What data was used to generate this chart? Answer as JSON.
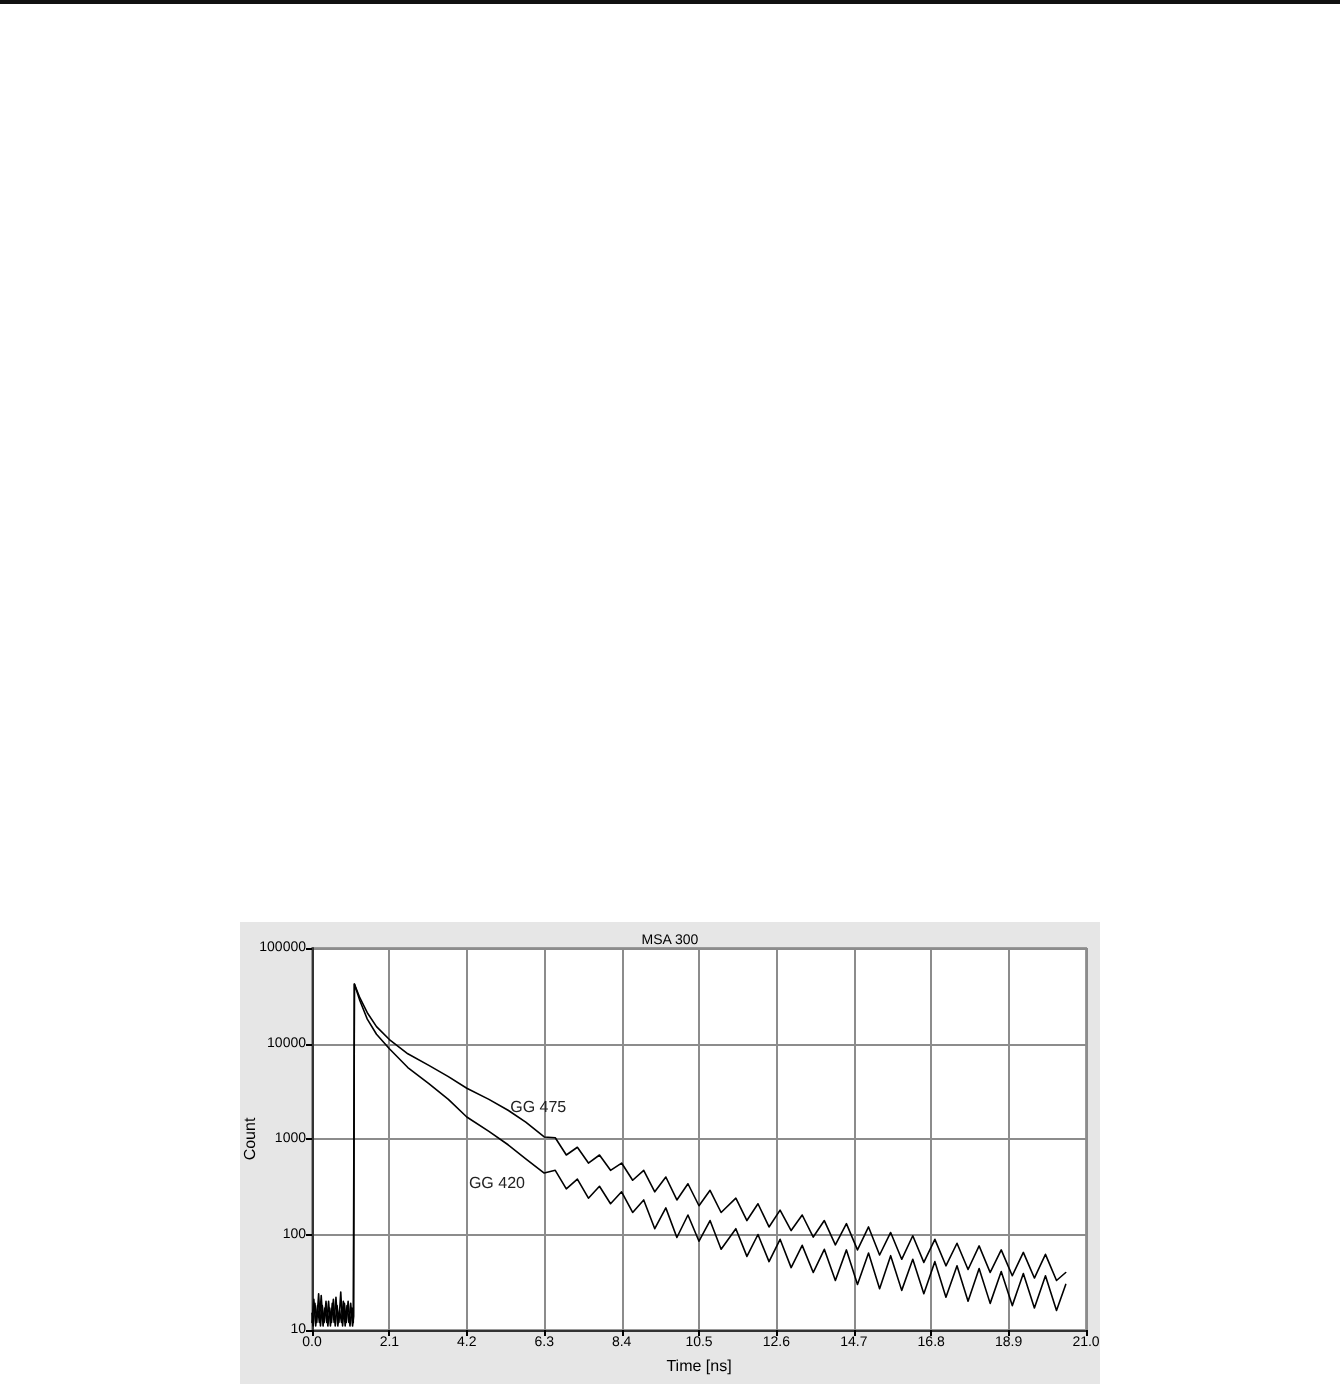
{
  "chart_data": {
    "type": "line",
    "title": "MSA 300",
    "xlabel": "Time [ns]",
    "ylabel": "Count",
    "xlim": [
      0,
      21
    ],
    "xticks": [
      {
        "value": 0,
        "label": "0.0"
      },
      2.1,
      4.2,
      6.3,
      8.4,
      10.5,
      12.6,
      14.7,
      16.8,
      18.9,
      {
        "value": 21,
        "label": "21.0"
      }
    ],
    "ylim": [
      10,
      100000
    ],
    "yticks": [
      10,
      100,
      1000,
      10000,
      100000
    ],
    "log": "y",
    "grid": true,
    "marker": "none",
    "line_style": "solid",
    "series": [
      {
        "name": "GG 475",
        "color": "#000000",
        "x": [
          0,
          0.05,
          0.1,
          0.15,
          0.2,
          0.25,
          0.3,
          0.35,
          0.4,
          0.45,
          0.5,
          0.55,
          0.6,
          0.65,
          0.7,
          0.75,
          0.8,
          0.85,
          0.9,
          0.95,
          1.0,
          1.05,
          1.1,
          1.13,
          1.15,
          1.3,
          1.5,
          1.75,
          2.1,
          2.6,
          3.17,
          3.7,
          4.2,
          4.8,
          5.32,
          5.8,
          6.3,
          6.6,
          6.9,
          7.2,
          7.5,
          7.8,
          8.1,
          8.4,
          8.7,
          9.0,
          9.3,
          9.6,
          9.9,
          10.2,
          10.5,
          10.8,
          11.1,
          11.5,
          11.8,
          12.1,
          12.4,
          12.7,
          13.0,
          13.3,
          13.6,
          13.9,
          14.2,
          14.5,
          14.8,
          15.1,
          15.4,
          15.7,
          16.0,
          16.3,
          16.6,
          16.9,
          17.2,
          17.5,
          17.8,
          18.1,
          18.4,
          18.7,
          19.0,
          19.3,
          19.6,
          19.9,
          20.2,
          20.45
        ],
        "values": [
          12,
          21,
          11,
          18,
          12,
          23,
          11,
          17,
          12,
          20,
          11,
          19,
          12,
          22,
          11,
          16,
          12,
          20,
          11,
          18,
          12,
          19,
          11,
          14,
          42000,
          30000,
          21000,
          15000,
          11000,
          7800,
          5900,
          4500,
          3400,
          2600,
          2000,
          1500,
          1050,
          1030,
          680,
          820,
          560,
          680,
          470,
          560,
          370,
          470,
          280,
          400,
          230,
          340,
          200,
          290,
          170,
          240,
          140,
          210,
          120,
          180,
          110,
          160,
          94,
          140,
          78,
          130,
          69,
          120,
          61,
          105,
          55,
          97,
          51,
          89,
          47,
          81,
          43,
          76,
          40,
          69,
          37,
          65,
          35,
          62,
          33,
          40
        ]
      },
      {
        "name": "GG 420",
        "color": "#000000",
        "x": [
          0,
          0.03,
          0.08,
          0.13,
          0.18,
          0.23,
          0.28,
          0.33,
          0.38,
          0.43,
          0.48,
          0.53,
          0.58,
          0.63,
          0.68,
          0.73,
          0.78,
          0.83,
          0.88,
          0.93,
          0.98,
          1.03,
          1.08,
          1.12,
          1.15,
          1.3,
          1.5,
          1.75,
          2.1,
          2.6,
          3.17,
          3.7,
          4.2,
          4.8,
          5.32,
          5.8,
          6.3,
          6.6,
          6.9,
          7.2,
          7.5,
          7.8,
          8.1,
          8.4,
          8.7,
          9.0,
          9.3,
          9.6,
          9.9,
          10.2,
          10.5,
          10.8,
          11.1,
          11.5,
          11.8,
          12.1,
          12.4,
          12.7,
          13.0,
          13.3,
          13.6,
          13.9,
          14.2,
          14.5,
          14.8,
          15.1,
          15.4,
          15.7,
          16.0,
          16.3,
          16.6,
          16.9,
          17.2,
          17.5,
          17.8,
          18.1,
          18.4,
          18.7,
          19.0,
          19.3,
          19.6,
          19.9,
          20.2,
          20.45
        ],
        "values": [
          15,
          11,
          19,
          12,
          24,
          11,
          18,
          12,
          20,
          11,
          17,
          12,
          21,
          11,
          18,
          12,
          25,
          11,
          19,
          12,
          20,
          11,
          17,
          12,
          42000,
          28000,
          18000,
          12500,
          8800,
          5600,
          3800,
          2600,
          1700,
          1200,
          870,
          620,
          440,
          470,
          300,
          380,
          240,
          320,
          210,
          280,
          170,
          230,
          115,
          190,
          93,
          160,
          85,
          140,
          70,
          115,
          59,
          100,
          52,
          89,
          45,
          77,
          40,
          70,
          33,
          69,
          30,
          64,
          27,
          60,
          26,
          55,
          24,
          52,
          22,
          47,
          20,
          44,
          19,
          41,
          18,
          39,
          17,
          37,
          16,
          30
        ]
      }
    ]
  }
}
